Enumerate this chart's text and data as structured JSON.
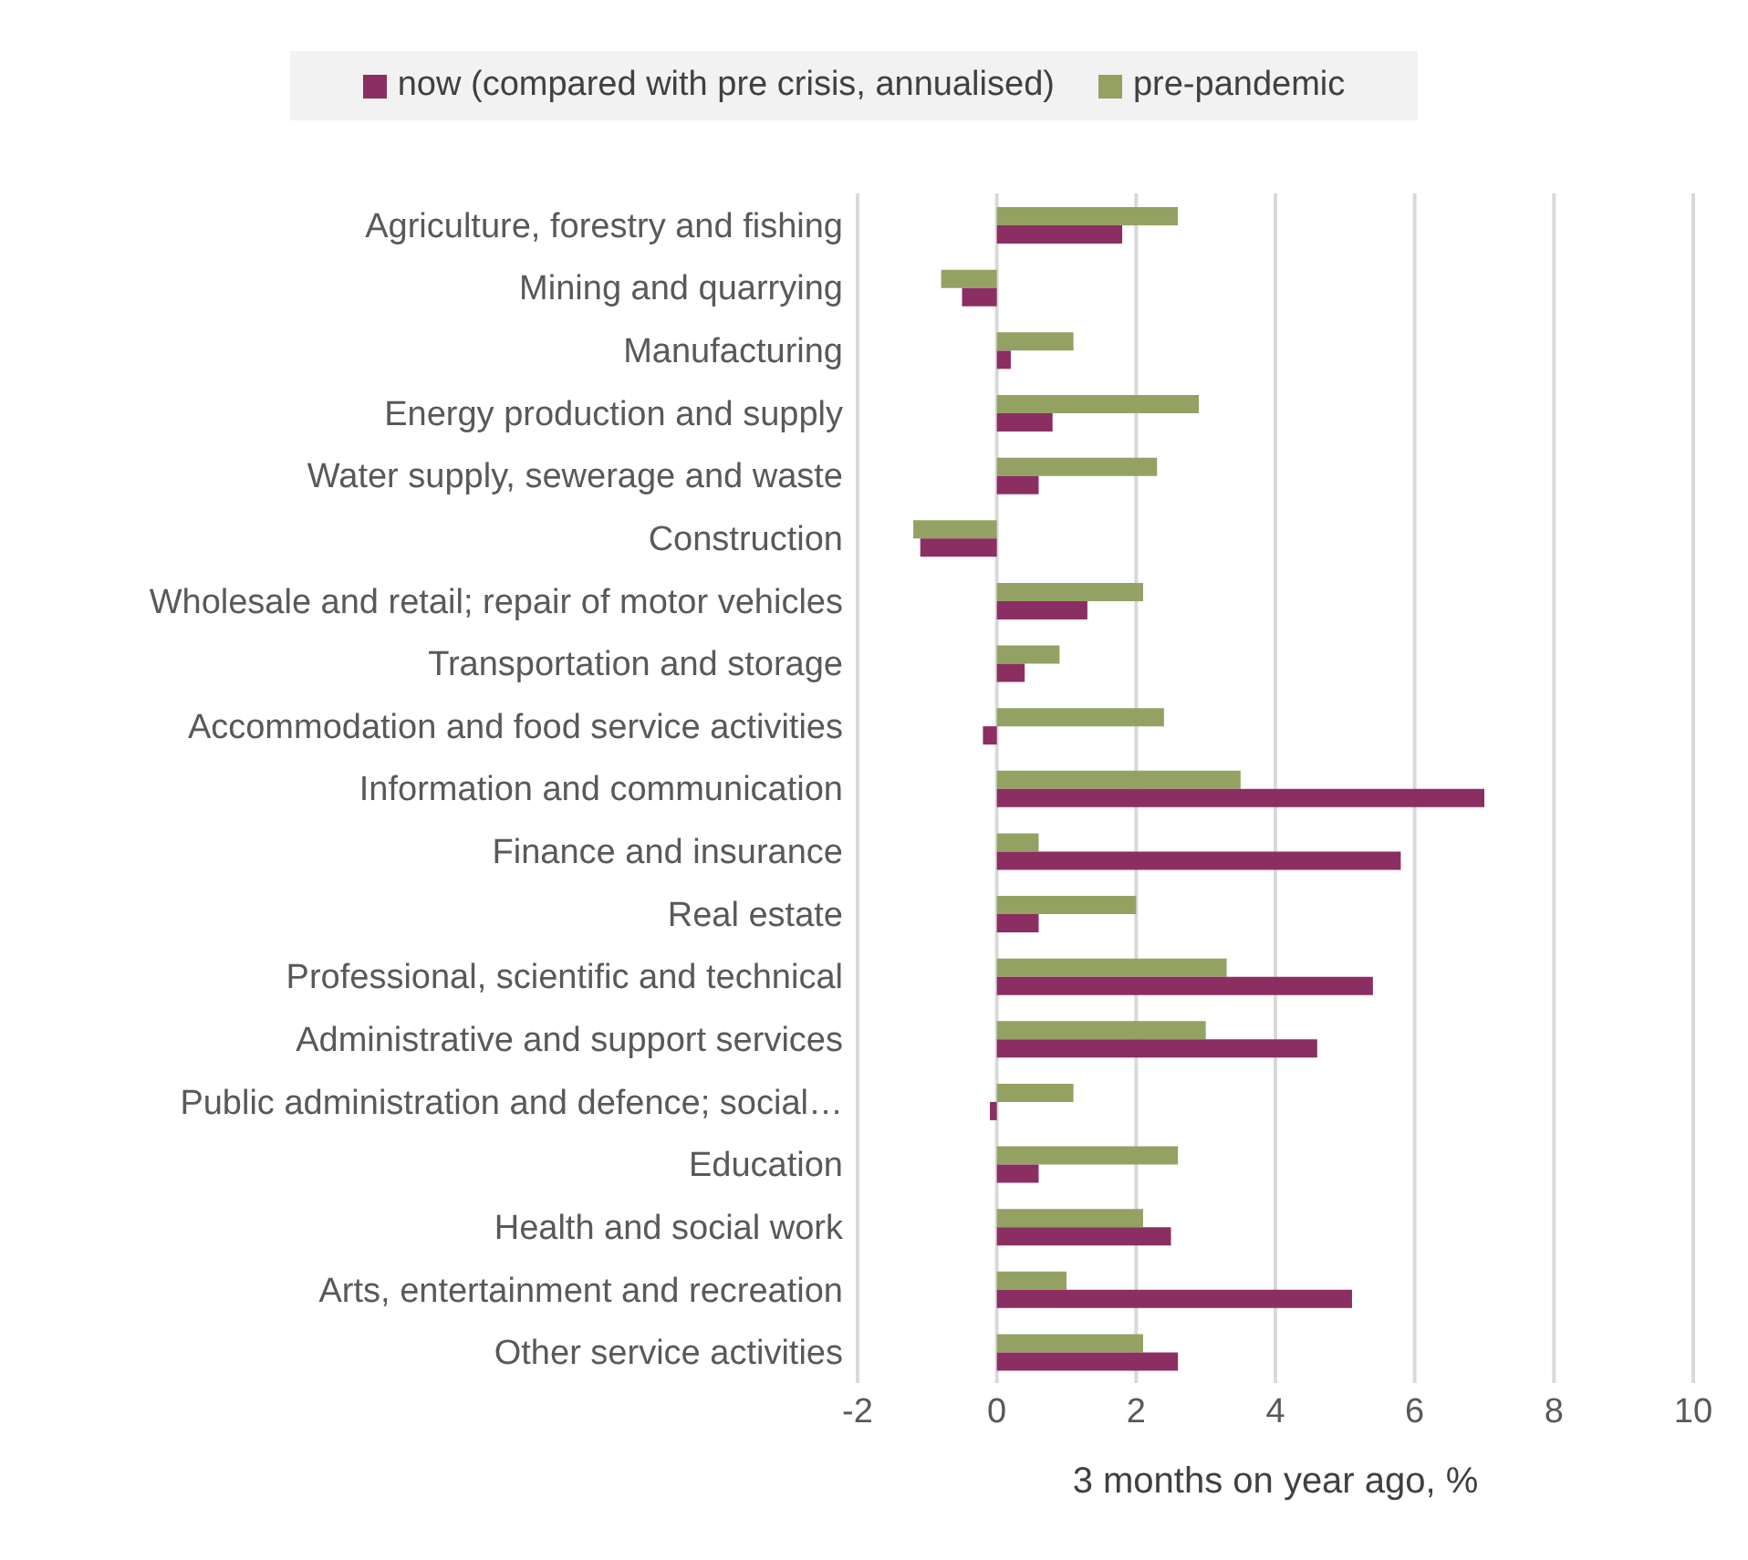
{
  "chart_data": {
    "type": "bar",
    "orientation": "horizontal",
    "xlabel": "3 months on year ago, %",
    "categories": [
      "Agriculture, forestry and fishing",
      "Mining and quarrying",
      "Manufacturing",
      "Energy production and supply",
      "Water supply, sewerage and waste",
      "Construction",
      "Wholesale and retail; repair of motor vehicles",
      "Transportation and storage",
      "Accommodation and food service activities",
      "Information and communication",
      "Finance and insurance",
      "Real estate",
      "Professional, scientific and technical",
      "Administrative and support services",
      "Public administration and defence; social…",
      "Education",
      "Health and social work",
      "Arts, entertainment and recreation",
      "Other service activities"
    ],
    "series": [
      {
        "name": "pre-pandemic",
        "color": "#93a263",
        "values": [
          2.6,
          -0.8,
          1.1,
          2.9,
          2.3,
          -1.2,
          2.1,
          0.9,
          2.4,
          3.5,
          0.6,
          2.0,
          3.3,
          3.0,
          1.1,
          2.6,
          2.1,
          1.0,
          2.1
        ]
      },
      {
        "name": "now (compared with pre crisis, annualised)",
        "color": "#8b2e62",
        "values": [
          1.8,
          -0.5,
          0.2,
          0.8,
          0.6,
          -1.1,
          1.3,
          0.4,
          -0.2,
          7.0,
          5.8,
          0.6,
          5.4,
          4.6,
          -0.1,
          0.6,
          2.5,
          5.1,
          2.6
        ]
      }
    ],
    "xlim": [
      -2,
      10
    ],
    "xticks": [
      -2,
      0,
      2,
      4,
      6,
      8,
      10
    ],
    "grid": "x",
    "legend": "top"
  }
}
